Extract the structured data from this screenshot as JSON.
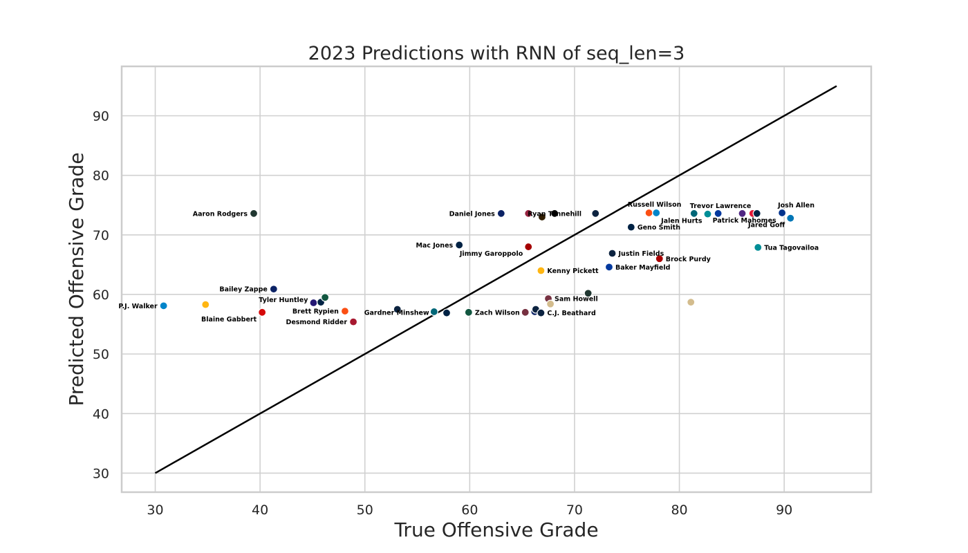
{
  "chart_data": {
    "type": "scatter",
    "title": "2023 Predictions with RNN of seq_len=3",
    "xlabel": "True Offensive Grade",
    "ylabel": "Predicted Offensive Grade",
    "xlim": [
      26.8,
      98.3
    ],
    "ylim": [
      26.8,
      98.3
    ],
    "xticks": [
      30,
      40,
      50,
      60,
      70,
      80,
      90
    ],
    "yticks": [
      30,
      40,
      50,
      60,
      70,
      80,
      90
    ],
    "grid": true,
    "reference_line": {
      "x": [
        30,
        95
      ],
      "y": [
        30,
        95
      ]
    },
    "points": [
      {
        "x": 30.8,
        "y": 58.1,
        "color": "#0085CA",
        "label": "P.J. Walker",
        "pos": "left"
      },
      {
        "x": 34.8,
        "y": 58.3,
        "color": "#FFB612",
        "label": "",
        "pos": "right"
      },
      {
        "x": 39.4,
        "y": 73.6,
        "color": "#203731",
        "label": "Aaron Rodgers",
        "pos": "left"
      },
      {
        "x": 40.2,
        "y": 57.0,
        "color": "#D50A0A",
        "label": "Blaine Gabbert",
        "pos": "left-below"
      },
      {
        "x": 41.3,
        "y": 60.9,
        "color": "#0B2265",
        "label": "Bailey Zappe",
        "pos": "left"
      },
      {
        "x": 45.1,
        "y": 58.6,
        "color": "#241773",
        "label": "Tyler Huntley",
        "pos": "left-above"
      },
      {
        "x": 45.8,
        "y": 58.7,
        "color": "#002244",
        "label": "",
        "pos": "right"
      },
      {
        "x": 46.2,
        "y": 59.5,
        "color": "#125740",
        "label": "",
        "pos": "right"
      },
      {
        "x": 48.1,
        "y": 57.2,
        "color": "#FB4F14",
        "label": "Brett Rypien",
        "pos": "left"
      },
      {
        "x": 48.9,
        "y": 55.4,
        "color": "#A71930",
        "label": "Desmond Ridder",
        "pos": "left"
      },
      {
        "x": 53.1,
        "y": 57.5,
        "color": "#0C2340",
        "label": "Gardner Minshew",
        "pos": "right-below"
      },
      {
        "x": 56.6,
        "y": 57.1,
        "color": "#006778",
        "label": "",
        "pos": "right"
      },
      {
        "x": 57.8,
        "y": 56.9,
        "color": "#002244",
        "label": "",
        "pos": "right"
      },
      {
        "x": 59.0,
        "y": 68.3,
        "color": "#002244",
        "label": "Mac Jones",
        "pos": "left"
      },
      {
        "x": 59.9,
        "y": 57.0,
        "color": "#125740",
        "label": "Zach Wilson",
        "pos": "right"
      },
      {
        "x": 63.0,
        "y": 73.6,
        "color": "#0B2265",
        "label": "Daniel Jones",
        "pos": "left"
      },
      {
        "x": 65.3,
        "y": 57.0,
        "color": "#773141",
        "label": "",
        "pos": "right"
      },
      {
        "x": 65.6,
        "y": 73.6,
        "color": "#97233F",
        "label": "",
        "pos": "right"
      },
      {
        "x": 65.6,
        "y": 68.0,
        "color": "#A5ACAF",
        "label": "Jimmy Garoppolo",
        "pos": "left-below",
        "fill": "#A50000"
      },
      {
        "x": 66.2,
        "y": 57.1,
        "color": "#0B2265",
        "label": "",
        "pos": "right"
      },
      {
        "x": 66.3,
        "y": 57.5,
        "color": "#0C2340",
        "label": "",
        "pos": "right"
      },
      {
        "x": 66.8,
        "y": 64.0,
        "color": "#FFB612",
        "label": "Kenny Pickett",
        "pos": "right"
      },
      {
        "x": 66.8,
        "y": 56.9,
        "color": "#0C2340",
        "label": "C.J. Beathard",
        "pos": "right"
      },
      {
        "x": 66.9,
        "y": 73.0,
        "color": "#311D00",
        "label": "",
        "pos": "right"
      },
      {
        "x": 67.5,
        "y": 59.3,
        "color": "#773141",
        "label": "Sam Howell",
        "pos": "right"
      },
      {
        "x": 67.7,
        "y": 58.4,
        "color": "#D3BC8D",
        "label": "",
        "pos": "right"
      },
      {
        "x": 68.1,
        "y": 73.6,
        "color": "#000000",
        "label": "Ryan Tannehill",
        "pos": "center"
      },
      {
        "x": 71.3,
        "y": 60.2,
        "color": "#203731",
        "label": "",
        "pos": "right"
      },
      {
        "x": 72.0,
        "y": 73.6,
        "color": "#0C2340",
        "label": "",
        "pos": "right"
      },
      {
        "x": 73.3,
        "y": 64.6,
        "color": "#03399E",
        "label": "Baker Mayfield",
        "pos": "right"
      },
      {
        "x": 73.6,
        "y": 66.9,
        "color": "#0C2340",
        "label": "Justin Fields",
        "pos": "right"
      },
      {
        "x": 75.4,
        "y": 71.3,
        "color": "#002244",
        "label": "Geno Smith",
        "pos": "right"
      },
      {
        "x": 77.1,
        "y": 73.7,
        "color": "#FB4F14",
        "label": "Russell Wilson",
        "pos": "above"
      },
      {
        "x": 77.8,
        "y": 73.7,
        "color": "#0085CA",
        "label": "",
        "pos": "right"
      },
      {
        "x": 78.1,
        "y": 66.0,
        "color": "#AA0000",
        "label": "Brock Purdy",
        "pos": "right"
      },
      {
        "x": 81.1,
        "y": 58.7,
        "color": "#D3BC8D",
        "label": "",
        "pos": "right"
      },
      {
        "x": 81.4,
        "y": 73.6,
        "color": "#006778",
        "label": "Trevor Lawrence",
        "pos": "right-above"
      },
      {
        "x": 82.7,
        "y": 73.5,
        "color": "#008E97",
        "label": "Jalen Hurts",
        "pos": "left-below"
      },
      {
        "x": 83.7,
        "y": 73.6,
        "color": "#03399E",
        "label": "",
        "pos": "right"
      },
      {
        "x": 86.0,
        "y": 73.6,
        "color": "#4F2683",
        "label": "",
        "pos": "right"
      },
      {
        "x": 87.0,
        "y": 73.6,
        "color": "#E31837",
        "label": "Patrick Mahomes",
        "pos": "center-below"
      },
      {
        "x": 87.4,
        "y": 73.6,
        "color": "#002244",
        "label": "",
        "pos": "right"
      },
      {
        "x": 87.5,
        "y": 67.9,
        "color": "#008E97",
        "label": "Tua Tagovailoa",
        "pos": "right"
      },
      {
        "x": 89.8,
        "y": 73.7,
        "color": "#00338D",
        "label": "Josh Allen",
        "pos": "right-above"
      },
      {
        "x": 90.6,
        "y": 72.8,
        "color": "#0076B6",
        "label": "Jared Goff",
        "pos": "left-below"
      }
    ]
  }
}
